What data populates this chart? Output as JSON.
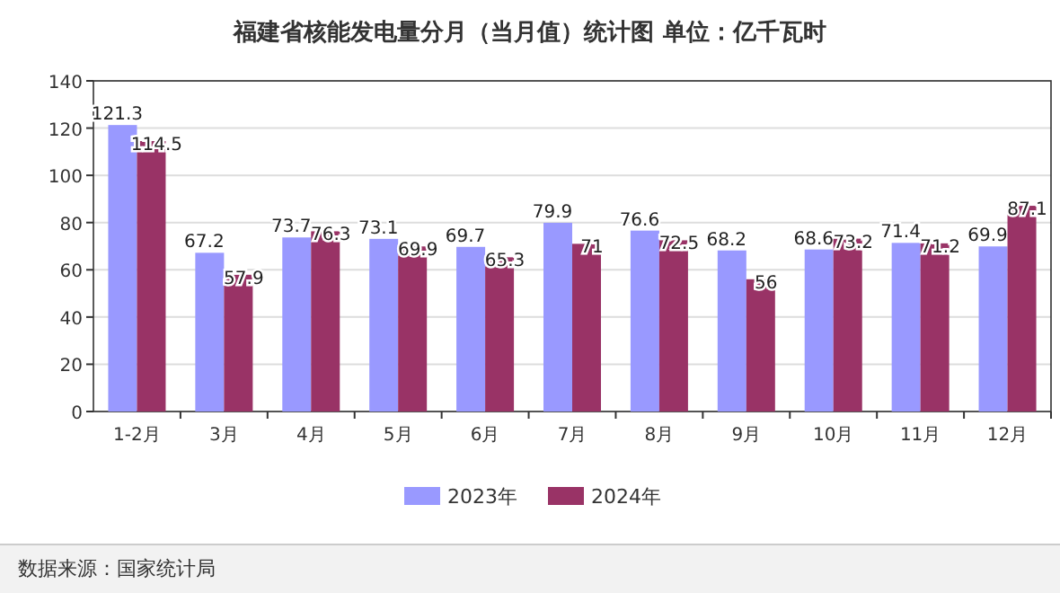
{
  "chart_data": {
    "type": "bar",
    "title": "福建省核能发电量分月（当月值）统计图 单位：亿千瓦时",
    "categories": [
      "1-2月",
      "3月",
      "4月",
      "5月",
      "6月",
      "7月",
      "8月",
      "9月",
      "10月",
      "11月",
      "12月"
    ],
    "series": [
      {
        "name": "2023年",
        "color": "#9999ff",
        "values": [
          121.3,
          67.2,
          73.7,
          73.1,
          69.7,
          79.9,
          76.6,
          68.2,
          68.6,
          71.4,
          69.9
        ]
      },
      {
        "name": "2024年",
        "color": "#993366",
        "values": [
          114.5,
          57.9,
          76.3,
          69.9,
          65.3,
          71,
          72.5,
          56,
          73.2,
          71.2,
          87.1
        ]
      }
    ],
    "ylim": [
      0,
      140
    ],
    "yticks": [
      0,
      20,
      40,
      60,
      80,
      100,
      120,
      140
    ],
    "grid": "y",
    "legend": "bottom",
    "data_labels": true,
    "annotations": [
      "数据来源：国家统计局"
    ]
  }
}
